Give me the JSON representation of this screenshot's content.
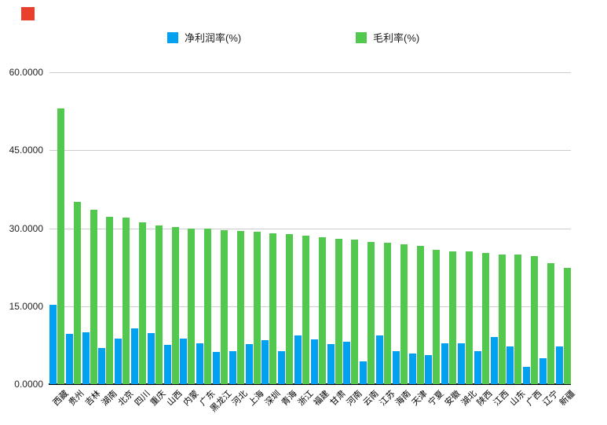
{
  "annotation": {
    "red_marker_color": "#e8402d"
  },
  "y_axis": {
    "ticks": [
      "60.0000",
      "45.0000",
      "30.0000",
      "15.0000",
      "0.0000"
    ],
    "min": 0,
    "max": 60
  },
  "chart_data": {
    "type": "bar",
    "title": "",
    "xlabel": "",
    "ylabel": "",
    "ylim": [
      0,
      60
    ],
    "grid": true,
    "legend_position": "top",
    "categories": [
      "西藏",
      "贵州",
      "吉林",
      "湖南",
      "北京",
      "四川",
      "重庆",
      "山西",
      "内蒙",
      "广东",
      "黑龙江",
      "河北",
      "上海",
      "深圳",
      "青海",
      "浙江",
      "福建",
      "甘肃",
      "河南",
      "云南",
      "江苏",
      "海南",
      "天津",
      "宁夏",
      "安徽",
      "湖北",
      "陕西",
      "江西",
      "山东",
      "广西",
      "辽宁",
      "新疆"
    ],
    "series": [
      {
        "name": "净利润率(%)",
        "color": "#00a1f0",
        "values": [
          15.3,
          9.7,
          10.0,
          6.9,
          8.7,
          10.8,
          9.8,
          7.6,
          8.8,
          7.9,
          6.2,
          6.3,
          7.7,
          8.5,
          6.3,
          9.4,
          8.6,
          7.7,
          8.1,
          4.4,
          9.3,
          6.4,
          5.9,
          5.6,
          7.9,
          7.8,
          6.3,
          9.1,
          7.3,
          3.3,
          5.0,
          7.2
        ]
      },
      {
        "name": "毛利率(%)",
        "color": "#52c84f",
        "values": [
          53.0,
          35.0,
          33.5,
          32.2,
          32.0,
          31.2,
          30.6,
          30.2,
          30.0,
          29.9,
          29.6,
          29.4,
          29.3,
          29.0,
          28.8,
          28.5,
          28.2,
          28.0,
          27.8,
          27.4,
          27.2,
          26.9,
          26.6,
          25.9,
          25.6,
          25.6,
          25.2,
          25.0,
          24.9,
          24.6,
          23.3,
          22.4
        ]
      }
    ]
  }
}
